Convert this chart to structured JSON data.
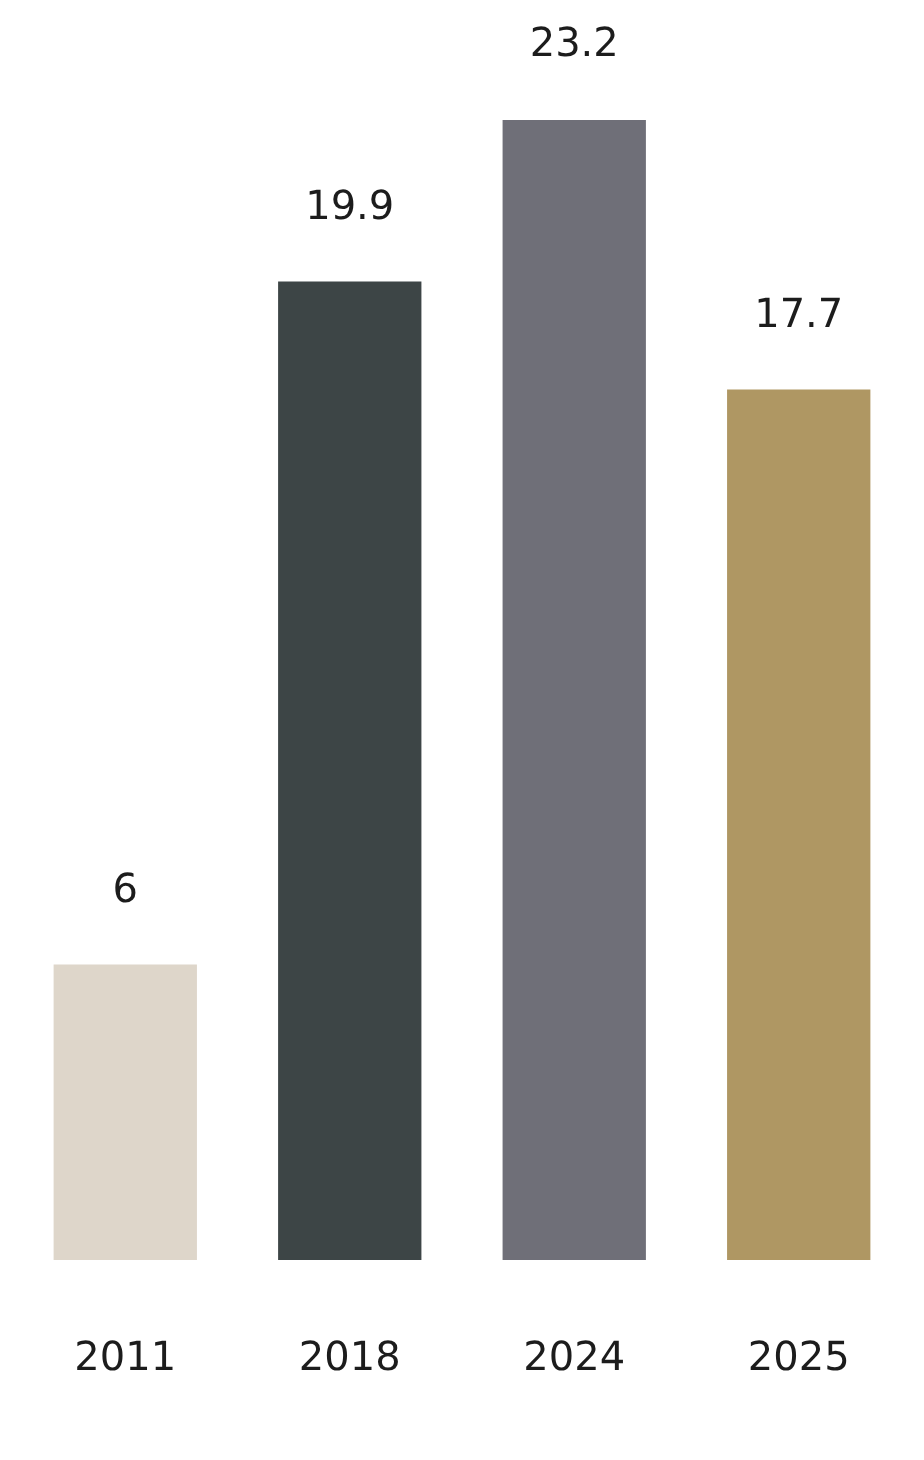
{
  "chart_data": {
    "type": "bar",
    "categories": [
      "2011",
      "2018",
      "2024",
      "2025"
    ],
    "values": [
      6,
      19.9,
      23.2,
      17.7
    ],
    "colors": [
      "#ded6ca",
      "#3d4546",
      "#6f6f78",
      "#af9763"
    ],
    "data_labels": true
  }
}
